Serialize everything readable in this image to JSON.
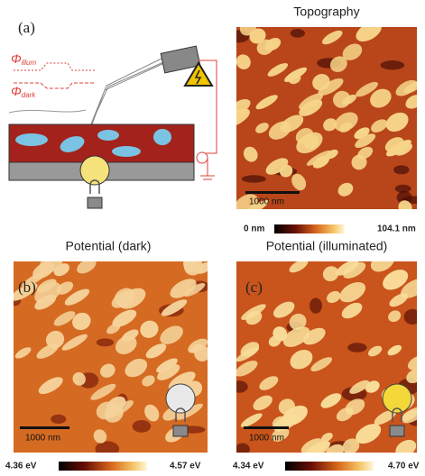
{
  "panel_a": {
    "label": "(a)",
    "phi_illum": {
      "symbol": "Φ",
      "subscript": "illum"
    },
    "phi_dark": {
      "symbol": "Φ",
      "subscript": "dark"
    }
  },
  "topography": {
    "title": "Topography",
    "scale_bar": "1000 nm",
    "colorbar_min": "0 nm",
    "colorbar_max": "104.1 nm"
  },
  "potential_dark": {
    "title": "Potential (dark)",
    "label": "(b)",
    "scale_bar": "1000 nm",
    "colorbar_min": "4.36 eV",
    "colorbar_max": "4.57 eV"
  },
  "potential_illuminated": {
    "title": "Potential (illuminated)",
    "label": "(c)",
    "scale_bar": "1000 nm",
    "colorbar_min": "4.34 eV",
    "colorbar_max": "4.70 eV"
  }
}
